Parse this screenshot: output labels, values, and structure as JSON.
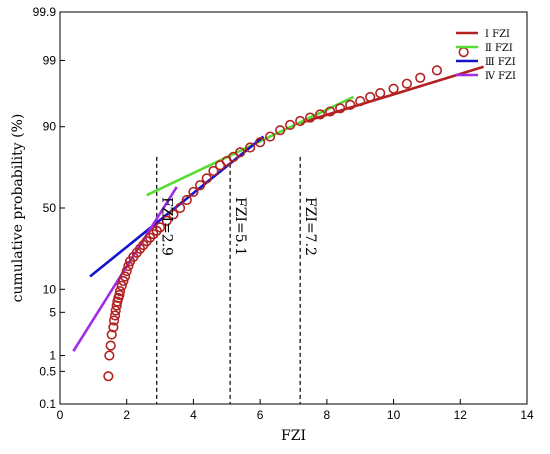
{
  "chart_data": {
    "type": "scatter",
    "title": "",
    "xlabel": "FZI",
    "ylabel": "cumulative probability (%)",
    "xlim": [
      0,
      14
    ],
    "y_scale": "probability",
    "ylim": [
      0.1,
      99.9
    ],
    "x_ticks": [
      0,
      2,
      4,
      6,
      8,
      10,
      12,
      14
    ],
    "y_ticks": [
      0.1,
      0.5,
      1,
      5,
      10,
      50,
      90,
      99,
      99.9
    ],
    "grid": false,
    "legend_position": "top-right",
    "series": [
      {
        "name": "Ⅰ  FZI",
        "type": "line",
        "color": "#b22222",
        "x": [
          7.2,
          12.7
        ],
        "y": [
          91,
          98.7
        ]
      },
      {
        "name": "Ⅱ  FZI",
        "type": "line",
        "color": "#55dd33",
        "x": [
          2.6,
          8.8
        ],
        "y": [
          58,
          96
        ]
      },
      {
        "name": "Ⅲ  FZI",
        "type": "line",
        "color": "#1414cc",
        "x": [
          0.9,
          6.1
        ],
        "y": [
          14,
          87
        ]
      },
      {
        "name": "Ⅳ  FZI",
        "type": "line",
        "color": "#a32be8",
        "x": [
          0.4,
          3.5
        ],
        "y": [
          1.2,
          63
        ]
      },
      {
        "name": "",
        "type": "scatter",
        "color": "#b22222",
        "x": [
          1.45,
          1.48,
          1.52,
          1.55,
          1.6,
          1.62,
          1.65,
          1.67,
          1.7,
          1.72,
          1.75,
          1.78,
          1.8,
          1.85,
          1.9,
          1.95,
          2.0,
          2.05,
          2.1,
          2.2,
          2.3,
          2.4,
          2.5,
          2.6,
          2.7,
          2.8,
          2.9,
          3.0,
          3.2,
          3.4,
          3.6,
          3.8,
          4.0,
          4.2,
          4.4,
          4.6,
          4.8,
          5.0,
          5.2,
          5.4,
          5.7,
          6.0,
          6.3,
          6.6,
          6.9,
          7.2,
          7.5,
          7.8,
          8.1,
          8.4,
          8.7,
          9.0,
          9.3,
          9.6,
          10.0,
          10.4,
          10.8,
          11.3,
          12.1
        ],
        "y": [
          0.4,
          1.0,
          1.5,
          2.3,
          3.0,
          3.8,
          4.5,
          5.3,
          6.2,
          7.0,
          7.8,
          8.5,
          9.5,
          11.0,
          12.5,
          14.0,
          16.0,
          18.0,
          20.0,
          22.0,
          24.0,
          26.0,
          28.0,
          30.0,
          32.0,
          34.0,
          36.0,
          38.0,
          42.0,
          46.0,
          50.0,
          55.0,
          60.0,
          64.0,
          68.0,
          72.0,
          75.0,
          77.0,
          79.0,
          81.0,
          83.0,
          85.0,
          87.0,
          89.0,
          90.5,
          91.5,
          92.3,
          93.0,
          93.6,
          94.2,
          94.8,
          95.4,
          96.0,
          96.5,
          97.0,
          97.5,
          98.0,
          98.5,
          99.3
        ]
      }
    ],
    "vlines": [
      {
        "x": 2.9,
        "label": "FZI=2.9"
      },
      {
        "x": 5.1,
        "label": "FZI=5.1"
      },
      {
        "x": 7.2,
        "label": "FZI=7.2"
      }
    ]
  }
}
